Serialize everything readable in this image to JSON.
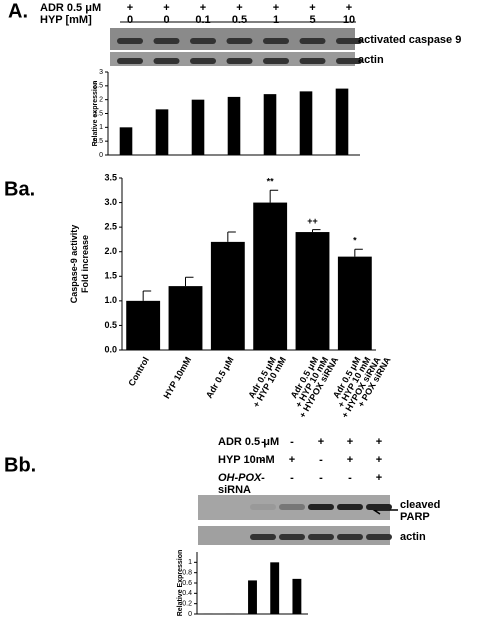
{
  "panels": [
    {
      "label": "A.",
      "rows": [
        {
          "name": [
            "ADR 0.5 μM"
          ],
          "marks": [
            "+",
            "+",
            "+",
            "+",
            "+",
            "+",
            "+"
          ]
        },
        {
          "name": [
            "HYP [mM]"
          ],
          "marks": [
            "0",
            "0",
            "0.1",
            "0.5",
            "1",
            "5",
            "10"
          ]
        }
      ],
      "blot_labels": [
        [
          "activated caspase 9"
        ],
        [
          "actin"
        ]
      ]
    },
    {
      "label": "Ba."
    },
    {
      "label": "Bb.",
      "rows": [
        {
          "name": [
            "ADR 0.5 μM"
          ],
          "marks": [
            "-",
            "-",
            "+",
            "+",
            "+"
          ]
        },
        {
          "name": [
            "HYP 10mM"
          ],
          "marks": [
            "-",
            "+",
            "-",
            "+",
            "+"
          ]
        },
        {
          "name": [
            "OH-POX",
            "siRNA"
          ],
          "marks": [
            "-",
            "-",
            "-",
            "-",
            "+"
          ]
        }
      ],
      "blot_labels": [
        [
          "cleaved",
          "PARP"
        ],
        [
          "actin"
        ]
      ]
    }
  ],
  "chart_data": [
    {
      "type": "bar",
      "y_label": [
        "Relative expression"
      ],
      "categories": [
        null,
        null,
        null,
        null,
        null,
        null,
        null
      ],
      "values": [
        1,
        1.65,
        2.0,
        2.1,
        2.2,
        2.3,
        2.4
      ],
      "color": "#000000",
      "ylim": [
        0,
        3
      ],
      "yticks": [
        0,
        0.5,
        1,
        1.5,
        2,
        2.5,
        3
      ]
    },
    {
      "type": "bar",
      "y_label": [
        "Caspase-9 activity",
        "Fold increase"
      ],
      "categories": [
        [
          "Control"
        ],
        [
          "HYP 10mM"
        ],
        [
          "Adr 0.5 μM"
        ],
        [
          "Adr 0.5 μM",
          "+ HYP 10 mM"
        ],
        [
          "Adr 0.5 μM",
          "+ HYP 10 mM",
          "+ HYPOX siRNA"
        ],
        [
          "Adr 0.5 μM",
          "+ HYP 10 mM",
          "+ HYPOX siRNA",
          "+ POX siRNA"
        ]
      ],
      "values": [
        1.0,
        1.3,
        2.2,
        3.0,
        2.4,
        1.9
      ],
      "errors": [
        0.2,
        0.18,
        0.2,
        0.25,
        0.05,
        0.15
      ],
      "annotations": [
        null,
        null,
        null,
        "**",
        "++",
        "*"
      ],
      "color": "#000000",
      "ylim": [
        0,
        3.5
      ],
      "yticks": [
        {
          "value": 0,
          "label": "0.0"
        },
        0.5,
        {
          "value": 1,
          "label": "1.0"
        },
        1.5,
        {
          "value": 2,
          "label": "2.0"
        },
        2.5,
        {
          "value": 3,
          "label": "3.0"
        },
        3.5
      ]
    },
    {
      "type": "bar",
      "y_label": [
        "Relative Expression"
      ],
      "categories": [
        null,
        null,
        null,
        null,
        null
      ],
      "values": [
        0.01,
        0.01,
        0.65,
        1.0,
        0.68
      ],
      "color": "#000000",
      "ylim": [
        0,
        1.2
      ],
      "yticks": [
        0,
        0.2,
        0.4,
        0.6,
        0.8,
        1
      ]
    }
  ]
}
